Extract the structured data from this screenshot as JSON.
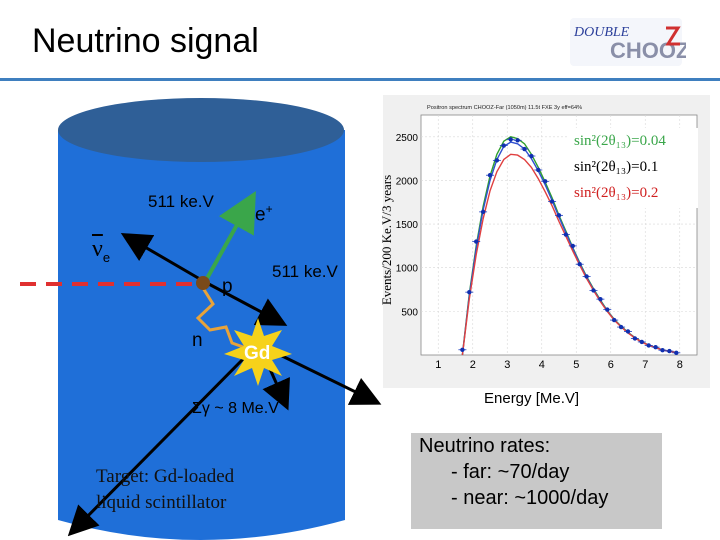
{
  "slide": {
    "title": "Neutrino signal",
    "logo_text": {
      "double": "DOUBLE",
      "chooz": "CHOOZ"
    }
  },
  "detector": {
    "label_511_top": "511 ke.V",
    "label_positron": "e",
    "label_positron_sup": "+",
    "label_neutrino": "ν",
    "label_neutrino_sub": "e",
    "label_proton": "p",
    "label_511_right": "511 ke.V",
    "label_neutron": "n",
    "label_gd": "Gd",
    "label_gamma_sum": "Σγ ~ 8 Me.V",
    "target_line1": "Target: Gd-loaded",
    "target_line2": "liquid scintillator",
    "colors": {
      "cylinder": "#1f6fd8",
      "cylinder_top": "#2f5f97",
      "beam": "#e03030",
      "positron": "#3aa64a",
      "neutron_path": "#e8a33a",
      "gd_burst": "#f6d21a"
    }
  },
  "chart_data": {
    "type": "line",
    "title": "Positron spectrum CHOOZ-Far (1050m) 11.5t FXE 3y eff=64%",
    "xlabel": "Energy [Me.V]",
    "ylabel": "Events/200 Ke.V/3 years",
    "xlim": [
      0.5,
      8.5
    ],
    "ylim": [
      0,
      2750
    ],
    "x_ticks": [
      1,
      2,
      3,
      4,
      5,
      6,
      7,
      8
    ],
    "y_ticks": [
      500,
      1000,
      1500,
      2000,
      2500
    ],
    "grid": true,
    "legend_position": "top-right",
    "legend_lines": [
      {
        "label": "sin²(2θ₁₃)=0.04"
      },
      {
        "label": "sin²(2θ₁₃)=0.1"
      },
      {
        "label": "sin²(2θ₁₃)=0.2"
      }
    ],
    "series": [
      {
        "color": "#2ea02e",
        "x": [
          1.7,
          1.9,
          2.1,
          2.3,
          2.5,
          2.7,
          2.9,
          3.1,
          3.3,
          3.5,
          3.7,
          3.9,
          4.1,
          4.3,
          4.5,
          4.7,
          4.9,
          5.1,
          5.3,
          5.5,
          5.7,
          5.9,
          6.1,
          6.3,
          6.5,
          6.7,
          6.9,
          7.1,
          7.3,
          7.5,
          7.7,
          7.9
        ],
        "y": [
          0,
          700,
          1250,
          1700,
          2050,
          2300,
          2450,
          2500,
          2480,
          2420,
          2300,
          2150,
          1980,
          1800,
          1600,
          1420,
          1230,
          1060,
          900,
          760,
          630,
          510,
          410,
          330,
          260,
          200,
          150,
          115,
          85,
          60,
          42,
          30
        ]
      },
      {
        "color": "#3050d0",
        "x": [
          1.7,
          1.9,
          2.1,
          2.3,
          2.5,
          2.7,
          2.9,
          3.1,
          3.3,
          3.5,
          3.7,
          3.9,
          4.1,
          4.3,
          4.5,
          4.7,
          4.9,
          5.1,
          5.3,
          5.5,
          5.7,
          5.9,
          6.1,
          6.3,
          6.5,
          6.7,
          6.9,
          7.1,
          7.3,
          7.5,
          7.7,
          7.9
        ],
        "y": [
          0,
          680,
          1220,
          1660,
          2000,
          2240,
          2390,
          2440,
          2420,
          2360,
          2250,
          2110,
          1950,
          1770,
          1580,
          1400,
          1220,
          1050,
          890,
          750,
          620,
          505,
          405,
          325,
          255,
          197,
          148,
          113,
          84,
          59,
          41,
          29
        ]
      },
      {
        "color": "#e04040",
        "x": [
          1.7,
          1.9,
          2.1,
          2.3,
          2.5,
          2.7,
          2.9,
          3.1,
          3.3,
          3.5,
          3.7,
          3.9,
          4.1,
          4.3,
          4.5,
          4.7,
          4.9,
          5.1,
          5.3,
          5.5,
          5.7,
          5.9,
          6.1,
          6.3,
          6.5,
          6.7,
          6.9,
          7.1,
          7.3,
          7.5,
          7.7,
          7.9
        ],
        "y": [
          0,
          640,
          1150,
          1560,
          1880,
          2100,
          2240,
          2300,
          2290,
          2240,
          2150,
          2020,
          1870,
          1710,
          1530,
          1360,
          1190,
          1030,
          875,
          740,
          612,
          500,
          400,
          322,
          252,
          195,
          147,
          112,
          83,
          58,
          40,
          29
        ]
      }
    ],
    "data_points": {
      "x": [
        1.7,
        1.9,
        2.1,
        2.3,
        2.5,
        2.7,
        2.9,
        3.1,
        3.3,
        3.5,
        3.7,
        3.9,
        4.1,
        4.3,
        4.5,
        4.7,
        4.9,
        5.1,
        5.3,
        5.5,
        5.7,
        5.9,
        6.1,
        6.3,
        6.5,
        6.7,
        6.9,
        7.1,
        7.3,
        7.5,
        7.7,
        7.9
      ],
      "y": [
        60,
        720,
        1300,
        1640,
        2060,
        2230,
        2400,
        2470,
        2460,
        2360,
        2280,
        2120,
        1990,
        1760,
        1600,
        1380,
        1250,
        1040,
        900,
        740,
        640,
        520,
        400,
        320,
        270,
        190,
        150,
        110,
        90,
        55,
        45,
        25
      ]
    }
  },
  "rates": {
    "title": "Neutrino rates:",
    "far": "- far: ~70/day",
    "near": "- near: ~1000/day"
  }
}
